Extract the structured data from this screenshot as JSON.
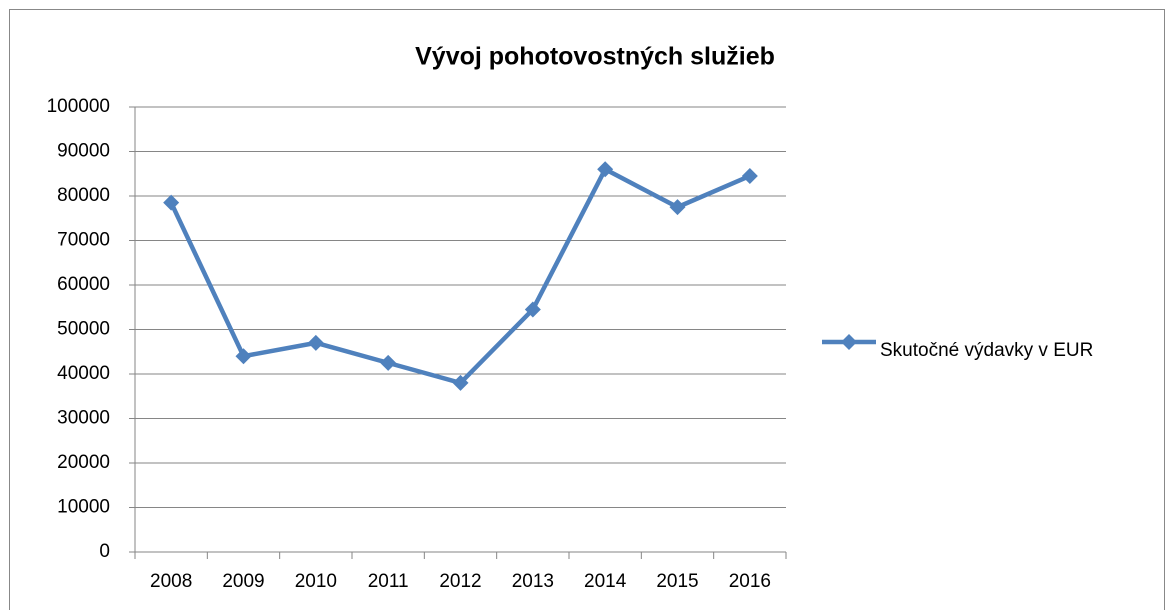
{
  "chart_data": {
    "type": "line",
    "title": "Vývoj pohotovostných služieb",
    "categories": [
      "2008",
      "2009",
      "2010",
      "2011",
      "2012",
      "2013",
      "2014",
      "2015",
      "2016"
    ],
    "series": [
      {
        "name": "Skutočné výdavky v EUR",
        "color": "#4f81bd",
        "values": [
          78500,
          44000,
          47000,
          42500,
          38000,
          54500,
          86000,
          77500,
          84500
        ]
      }
    ],
    "ylim": [
      0,
      100000
    ],
    "yticks": [
      0,
      10000,
      20000,
      30000,
      40000,
      50000,
      60000,
      70000,
      80000,
      90000,
      100000
    ],
    "grid": true,
    "legend": "right"
  }
}
